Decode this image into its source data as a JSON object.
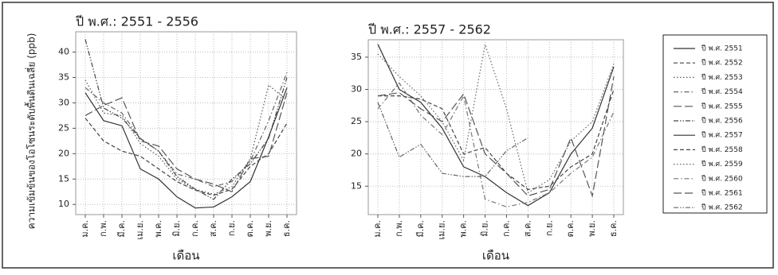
{
  "chart_data": [
    {
      "type": "line",
      "title": "ปี พ.ศ.: 2551 - 2556",
      "x_label": "เดือน",
      "y_label": "ความเข้มข้นของโอโซนระดับพื้นดินเฉลี่ย (ppb)",
      "categories": [
        "ม.ค.",
        "ก.พ.",
        "มี.ค.",
        "เม.ย.",
        "พ.ค.",
        "มิ.ย.",
        "ก.ค.",
        "ส.ค.",
        "ก.ย.",
        "ต.ค.",
        "พ.ย.",
        "ธ.ค."
      ],
      "ylim": [
        8,
        44
      ],
      "yticks": [
        10,
        15,
        20,
        25,
        30,
        35,
        40
      ],
      "grid": true,
      "series": [
        {
          "name": "ปี พ.ศ. 2551",
          "color": "#333333",
          "dash": "solid",
          "values": [
            32,
            26.5,
            25.5,
            17,
            15,
            11.5,
            9.3,
            9.5,
            11.5,
            14.5,
            23.3,
            33
          ]
        },
        {
          "name": "ปี พ.ศ. 2552",
          "color": "#444444",
          "dash": "dashed",
          "values": [
            27,
            22.5,
            20.5,
            19.5,
            17,
            14.5,
            12.8,
            11.8,
            13,
            17.5,
            20,
            26
          ]
        },
        {
          "name": "ปี พ.ศ. 2553",
          "color": "#555555",
          "dash": "dotted",
          "values": [
            34.5,
            28,
            27.5,
            22,
            19.5,
            15,
            13,
            12,
            13.5,
            19,
            33.5,
            30.5
          ]
        },
        {
          "name": "ปี พ.ศ. 2554",
          "color": "#666666",
          "dash": "dashdot",
          "values": [
            33,
            30,
            28,
            23,
            20.5,
            16,
            15,
            13.5,
            14.5,
            18.5,
            26.5,
            36
          ]
        },
        {
          "name": "ปี พ.ศ. 2555",
          "color": "#555555",
          "dash": "longdash",
          "values": [
            27.5,
            29.5,
            31,
            22.5,
            21.5,
            17,
            15,
            14,
            12.5,
            19,
            19.5,
            32
          ]
        },
        {
          "name": "ปี พ.ศ. 2556",
          "color": "#444444",
          "dash": "dashdotdot",
          "values": [
            42.5,
            29,
            27,
            23,
            20.5,
            15.5,
            13,
            11,
            15,
            18,
            23,
            35
          ]
        }
      ]
    },
    {
      "type": "line",
      "title": "ปี พ.ศ.: 2557 - 2562",
      "x_label": "เดือน",
      "categories": [
        "ม.ค.",
        "ก.พ.",
        "มี.ค.",
        "เม.ย.",
        "พ.ค.",
        "มิ.ย.",
        "ก.ค.",
        "ส.ค.",
        "ก.ย.",
        "ต.ค.",
        "พ.ย.",
        "ธ.ค."
      ],
      "ylim": [
        10.6,
        37.7
      ],
      "yticks": [
        15,
        20,
        25,
        30,
        35
      ],
      "grid": true,
      "series": [
        {
          "name": "ปี พ.ศ. 2557",
          "color": "#333333",
          "dash": "solid",
          "values": [
            37,
            30,
            28,
            24,
            18,
            16.5,
            14,
            12,
            14,
            20,
            24,
            33.5
          ]
        },
        {
          "name": "ปี พ.ศ. 2558",
          "color": "#444444",
          "dash": "dashed",
          "values": [
            29,
            29,
            28.5,
            27,
            20,
            21,
            17,
            14.5,
            15,
            18,
            20,
            30
          ]
        },
        {
          "name": "ปี พ.ศ. 2559",
          "color": "#666666",
          "dash": "dotted",
          "values": [
            35.5,
            32,
            29,
            25,
            19,
            37,
            27,
            14,
            16,
            22,
            25,
            34
          ]
        },
        {
          "name": "ปี พ.ศ. 2560",
          "color": "#777777",
          "dash": "dashdot",
          "values": [
            27,
            31,
            26,
            23,
            29,
            13,
            11.8,
            12.5,
            14,
            17,
            19.5,
            26.5
          ]
        },
        {
          "name": "ปี พ.ศ. 2561",
          "color": "#555555",
          "dash": "longdash",
          "values": [
            29,
            29.5,
            27,
            25,
            29.3,
            20,
            17,
            13.5,
            14.5,
            22.5,
            13.5,
            32
          ]
        },
        {
          "name": "ปี พ.ศ. 2562",
          "color": "#666666",
          "dash": "dashdotdot",
          "values": [
            28,
            19.5,
            21.5,
            17,
            16.5,
            16.5,
            20.5,
            22.5,
            null,
            null,
            null,
            null
          ]
        }
      ]
    }
  ]
}
